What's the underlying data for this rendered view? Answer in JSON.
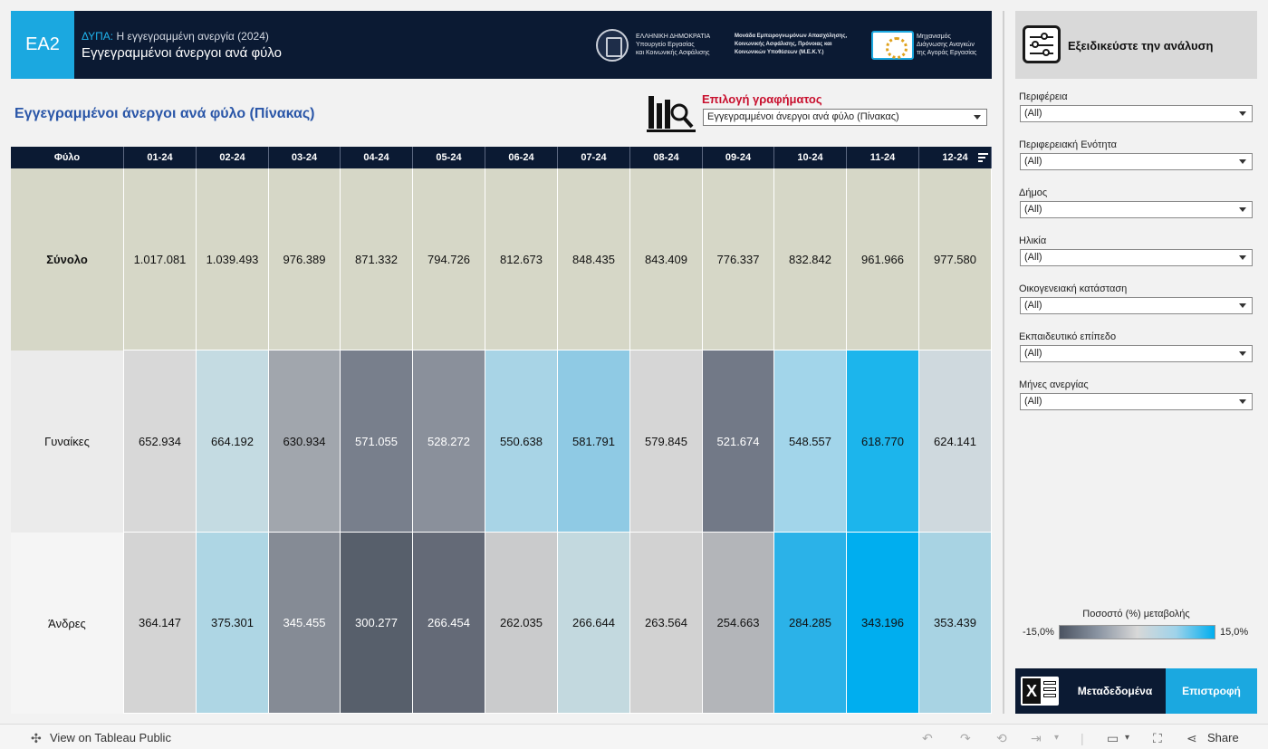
{
  "header": {
    "code": "EA2",
    "subtitle_prefix": "ΔΥΠΑ:",
    "subtitle": "Η εγγεγραμμένη ανεργία (2024)",
    "title": "Εγγεγραμμένοι άνεργοι ανά φύλο",
    "logo_a": [
      "ΕΛΛΗΝΙΚΗ ΔΗΜΟΚΡΑΤΙΑ",
      "Υπουργείο Εργασίας",
      "και Κοινωνικής Ασφάλισης"
    ],
    "logo_b": [
      "Μονάδα Εμπειρογνωμόνων Απασχόλησης,",
      "Κοινωνικής Ασφάλισης, Πρόνοιας και",
      "Κοινωνικών Υποθέσεων (Μ.Ε.Κ.Υ.)"
    ],
    "logo_c": [
      "Μηχανισμός",
      "Διάγνωσης Αναγκών",
      "της Αγοράς Εργασίας"
    ]
  },
  "page": {
    "title": "Εγγεγραμμένοι άνεργοι ανά φύλο (Πίνακας)",
    "chart_select_label": "Επιλογή γραφήματος",
    "chart_select_value": "Εγγεγραμμένοι άνεργοι ανά φύλο (Πίνακας)"
  },
  "table": {
    "row_header": "Φύλο",
    "months": [
      "01-24",
      "02-24",
      "03-24",
      "04-24",
      "05-24",
      "06-24",
      "07-24",
      "08-24",
      "09-24",
      "10-24",
      "11-24",
      "12-24"
    ],
    "rows": [
      {
        "label": "Σύνολο",
        "values": [
          "1.017.081",
          "1.039.493",
          "976.389",
          "871.332",
          "794.726",
          "812.673",
          "848.435",
          "843.409",
          "776.337",
          "832.842",
          "961.966",
          "977.580"
        ]
      },
      {
        "label": "Γυναίκες",
        "values": [
          "652.934",
          "664.192",
          "630.934",
          "571.055",
          "528.272",
          "550.638",
          "581.791",
          "579.845",
          "521.674",
          "548.557",
          "618.770",
          "624.141"
        ]
      },
      {
        "label": "Άνδρες",
        "values": [
          "364.147",
          "375.301",
          "345.455",
          "300.277",
          "266.454",
          "262.035",
          "266.644",
          "263.564",
          "254.663",
          "284.285",
          "343.196",
          "353.439"
        ]
      }
    ],
    "colors": {
      "total_bg": "#d6d7c7",
      "women": [
        "#d8d8d8",
        "#c4dbe2",
        "#a1a6ad",
        "#787f8c",
        "#8a909b",
        "#a8d4e6",
        "#8fcae4",
        "#d6d6d6",
        "#727987",
        "#a2d5ea",
        "#1cb5ec",
        "#cfd9de"
      ],
      "men": [
        "#d4d4d4",
        "#aed6e4",
        "#858b95",
        "#575f6b",
        "#646a77",
        "#cacbcc",
        "#c3d9df",
        "#d2d2d2",
        "#b3b5b9",
        "#2bb2e8",
        "#00aeef",
        "#a8d3e3"
      ],
      "women_text": [
        "#111",
        "#111",
        "#111",
        "#fff",
        "#fff",
        "#111",
        "#111",
        "#111",
        "#fff",
        "#111",
        "#111",
        "#111"
      ],
      "men_text": [
        "#111",
        "#111",
        "#fff",
        "#fff",
        "#fff",
        "#111",
        "#111",
        "#111",
        "#111",
        "#111",
        "#111",
        "#111"
      ]
    }
  },
  "sidebar": {
    "title": "Εξειδικεύστε την ανάλυση",
    "filters": [
      {
        "label": "Περιφέρεια",
        "value": "(All)"
      },
      {
        "label": "Περιφερειακή Ενότητα",
        "value": "(All)"
      },
      {
        "label": "Δήμος",
        "value": "(All)"
      },
      {
        "label": "Ηλικία",
        "value": "(All)"
      },
      {
        "label": "Οικογενειακή κατάσταση",
        "value": "(All)"
      },
      {
        "label": "Εκπαιδευτικό επίπεδο",
        "value": "(All)"
      },
      {
        "label": "Μήνες ανεργίας",
        "value": "(All)"
      }
    ],
    "legend": {
      "title": "Ποσοστό (%) μεταβολής",
      "min": "-15,0%",
      "max": "15,0%"
    },
    "metadata_button": "Μεταδεδομένα",
    "back_button": "Επιστροφή"
  },
  "footer": {
    "view_link": "View on Tableau Public",
    "share": "Share"
  }
}
